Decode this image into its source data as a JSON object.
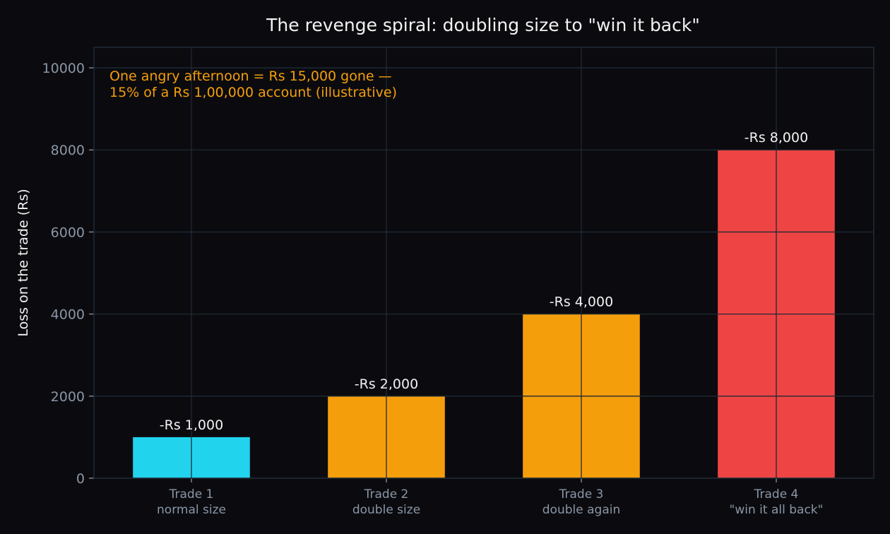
{
  "chart_data": {
    "type": "bar",
    "title": "The revenge spiral: doubling size to \"win it back\"",
    "ylabel": "Loss on the trade (Rs)",
    "xlabel": "",
    "ylim": [
      0,
      10500
    ],
    "yticks": [
      0,
      2000,
      4000,
      6000,
      8000,
      10000
    ],
    "grid": true,
    "categories": [
      [
        "Trade 1",
        "normal size"
      ],
      [
        "Trade 2",
        "double size"
      ],
      [
        "Trade 3",
        "double again"
      ],
      [
        "Trade 4",
        "\"win it all back\""
      ]
    ],
    "values": [
      1000,
      2000,
      4000,
      8000
    ],
    "data_labels": [
      "-Rs 1,000",
      "-Rs 2,000",
      "-Rs 4,000",
      "-Rs 8,000"
    ],
    "bar_colors": [
      "#22d3ee",
      "#f59e0b",
      "#f59e0b",
      "#ef4444"
    ],
    "annotation": [
      "One angry afternoon = Rs 15,000 gone —",
      "15% of a Rs 1,00,000 account (illustrative)"
    ],
    "colors": {
      "background": "#0b0b0f",
      "grid": "#1f2a36",
      "text": "#f2f2f2",
      "tick_text": "#8a96a6",
      "annotation": "#f59e0b"
    }
  }
}
